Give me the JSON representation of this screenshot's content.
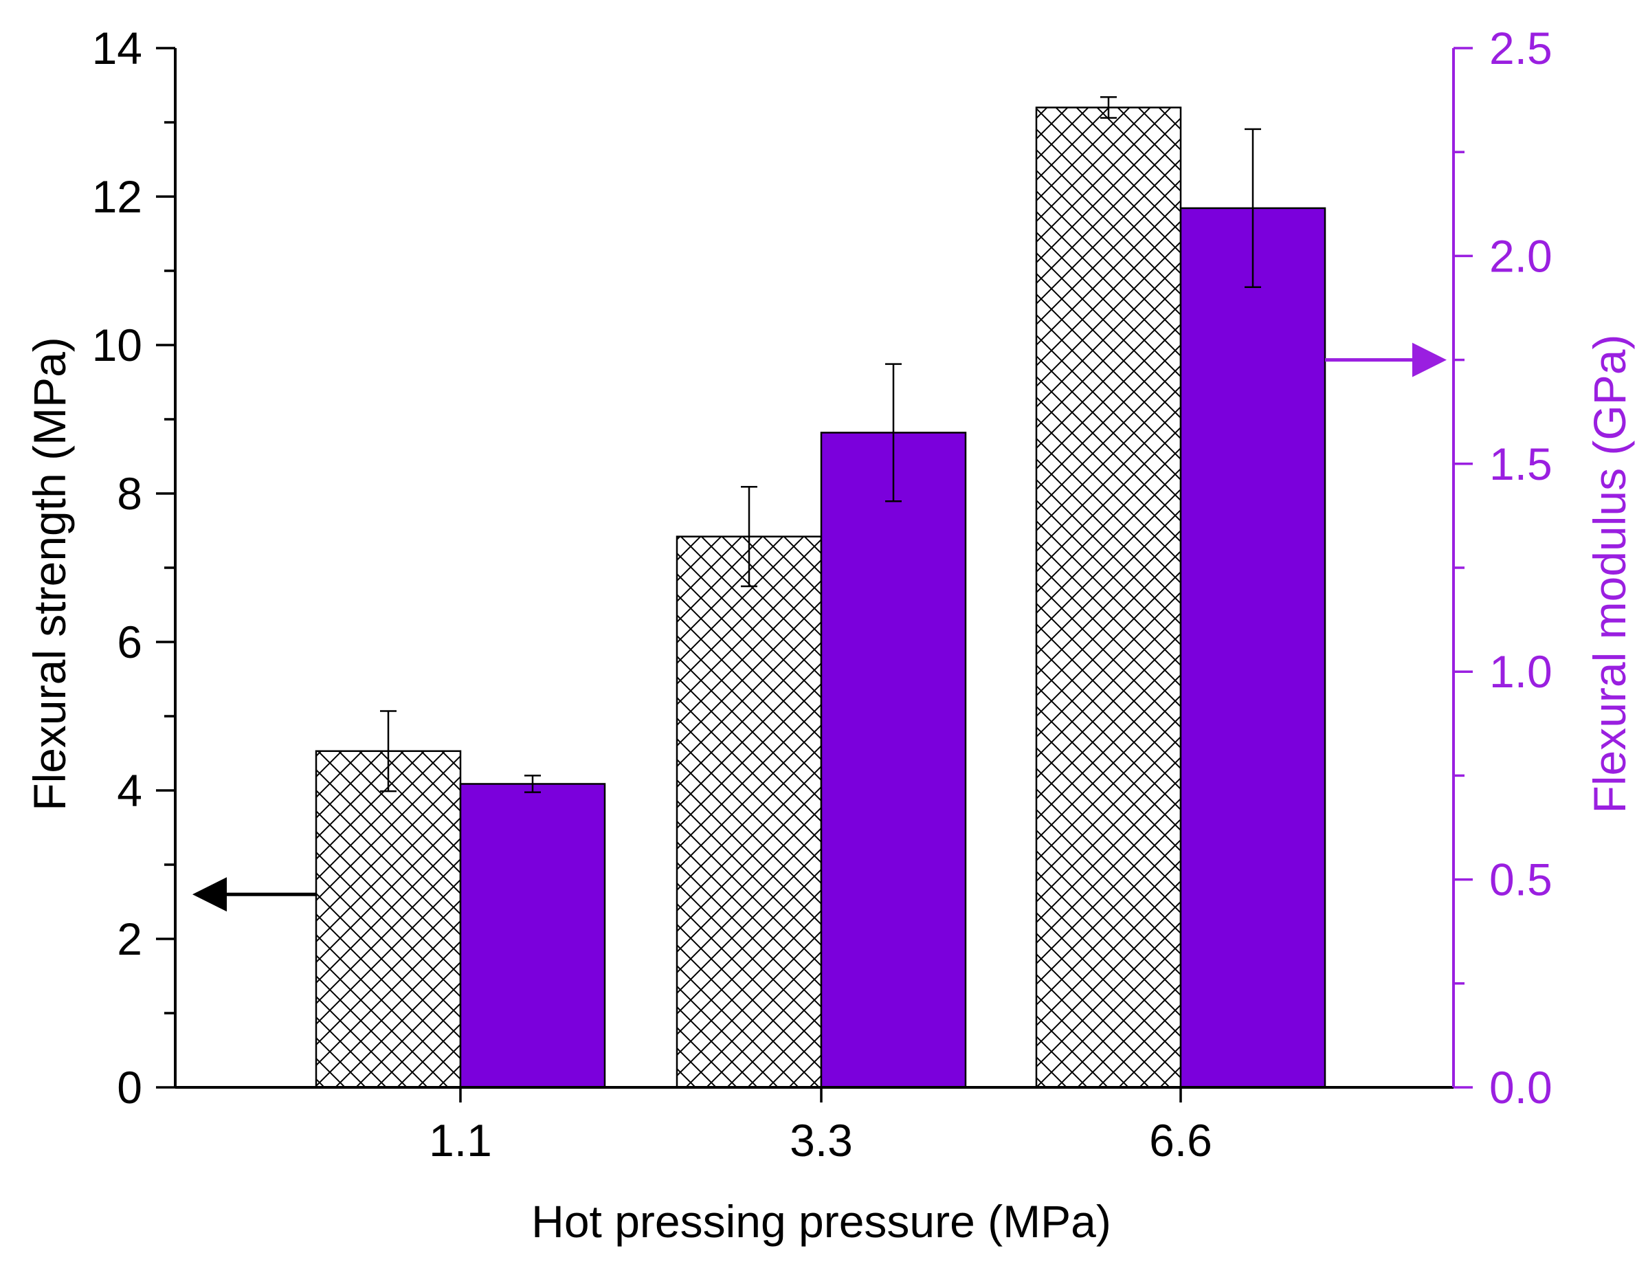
{
  "chart_data": {
    "type": "bar",
    "xlabel": "Hot pressing pressure (MPa)",
    "ylabel": "Flexural strength (MPa)",
    "y2label": "Flexural modulus (GPa)",
    "categories": [
      "1.1",
      "3.3",
      "6.6"
    ],
    "ylim": [
      0,
      14
    ],
    "y2lim": [
      0,
      2.5
    ],
    "yticks": [
      "0",
      "2",
      "4",
      "6",
      "8",
      "10",
      "12",
      "14"
    ],
    "y2ticks": [
      "0.0",
      "0.5",
      "1.0",
      "1.5",
      "2.0",
      "2.5"
    ],
    "series": [
      {
        "name": "Flexural strength",
        "axis": "left",
        "values": [
          4.53,
          7.42,
          13.2
        ],
        "errors": [
          0.54,
          0.67,
          0.14
        ],
        "fill": "crosshatch"
      },
      {
        "name": "Flexural modulus",
        "axis": "right",
        "values": [
          0.73,
          1.575,
          2.115
        ],
        "errors": [
          0.02,
          0.165,
          0.19
        ],
        "fill": "#7b00dc"
      }
    ],
    "annotations": [
      {
        "type": "arrow",
        "points_to": "left axis",
        "series": "Flexural strength",
        "at_left_value": 2.6
      },
      {
        "type": "arrow",
        "points_to": "right axis",
        "series": "Flexural modulus",
        "at_right_value": 1.75
      }
    ],
    "colors": {
      "left_axis": "#000000",
      "right_axis": "#9a1fe0",
      "modulus_bar": "#7b00dc"
    }
  }
}
